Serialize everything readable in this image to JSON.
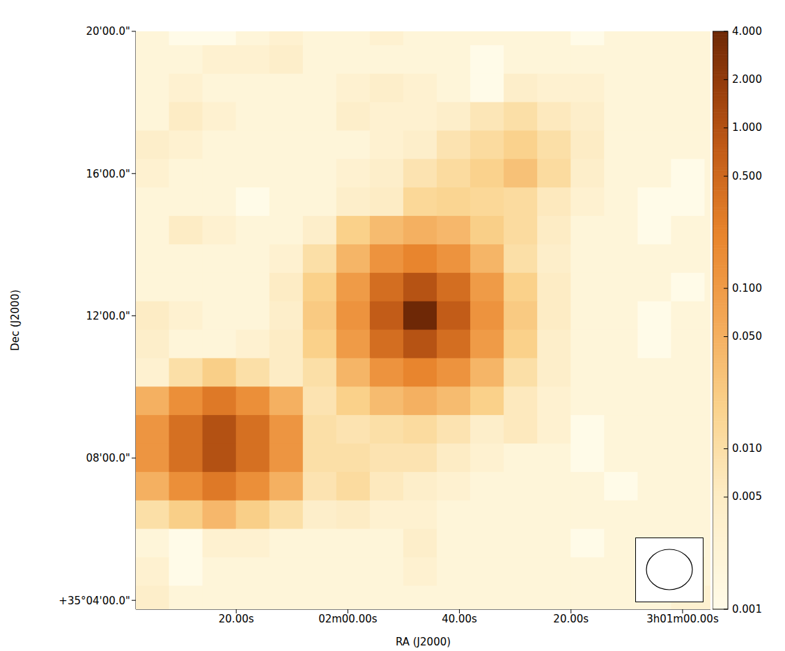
{
  "chart_data": {
    "type": "heatmap",
    "xlabel": "RA (J2000)",
    "ylabel": "Dec (J2000)",
    "xlim": [
      158,
      55
    ],
    "ylim": [
      3.75,
      20.0
    ],
    "xticks": [
      {
        "value": 140,
        "label": "20.00s"
      },
      {
        "value": 120,
        "label": "02m00.00s"
      },
      {
        "value": 100,
        "label": "40.00s"
      },
      {
        "value": 80,
        "label": "20.00s"
      },
      {
        "value": 60,
        "label": "3h01m00.00s"
      }
    ],
    "yticks": [
      {
        "value": 4,
        "label": "+35°04'00.0\""
      },
      {
        "value": 8,
        "label": "08'00.0\""
      },
      {
        "value": 12,
        "label": "12'00.0\""
      },
      {
        "value": 16,
        "label": "16'00.0\""
      },
      {
        "value": 20,
        "label": "20'00.0\""
      }
    ],
    "grid": false,
    "x": [
      155,
      149,
      143,
      137,
      131,
      125,
      119,
      113,
      107,
      101,
      95,
      89,
      83,
      77,
      71,
      65,
      59,
      53
    ],
    "y": [
      20.0,
      19.2,
      18.4,
      17.6,
      16.8,
      16.0,
      15.2,
      14.4,
      13.6,
      12.8,
      12.0,
      11.2,
      10.4,
      9.6,
      8.8,
      8.0,
      7.2,
      6.4,
      5.6,
      4.8,
      4.0
    ],
    "values": [
      [
        0.002,
        0.001,
        0.001,
        0.002,
        0.003,
        0.002,
        0.002,
        0.003,
        0.002,
        0.002,
        0.002,
        0.002,
        0.002,
        0.001,
        0.002,
        0.002,
        0.002,
        0.002
      ],
      [
        0.002,
        0.002,
        0.003,
        0.003,
        0.004,
        0.002,
        0.002,
        0.002,
        0.002,
        0.002,
        0.001,
        0.002,
        0.002,
        0.002,
        0.002,
        0.002,
        0.002,
        0.002
      ],
      [
        0.002,
        0.003,
        0.002,
        0.002,
        0.002,
        0.002,
        0.003,
        0.004,
        0.003,
        0.002,
        0.001,
        0.004,
        0.003,
        0.003,
        0.002,
        0.002,
        0.002,
        0.002
      ],
      [
        0.002,
        0.005,
        0.003,
        0.002,
        0.002,
        0.002,
        0.004,
        0.003,
        0.003,
        0.004,
        0.007,
        0.01,
        0.006,
        0.004,
        0.002,
        0.002,
        0.002,
        0.002
      ],
      [
        0.004,
        0.003,
        0.002,
        0.002,
        0.002,
        0.002,
        0.002,
        0.003,
        0.004,
        0.008,
        0.012,
        0.018,
        0.01,
        0.005,
        0.002,
        0.002,
        0.002,
        0.002
      ],
      [
        0.003,
        0.002,
        0.002,
        0.002,
        0.002,
        0.002,
        0.003,
        0.004,
        0.008,
        0.012,
        0.018,
        0.03,
        0.012,
        0.004,
        0.002,
        0.002,
        0.001,
        0.002
      ],
      [
        0.002,
        0.002,
        0.002,
        0.001,
        0.002,
        0.002,
        0.004,
        0.005,
        0.014,
        0.016,
        0.014,
        0.012,
        0.006,
        0.003,
        0.002,
        0.001,
        0.001,
        0.002
      ],
      [
        0.002,
        0.005,
        0.003,
        0.002,
        0.002,
        0.004,
        0.019,
        0.036,
        0.05,
        0.04,
        0.02,
        0.012,
        0.005,
        0.002,
        0.002,
        0.001,
        0.002,
        0.002
      ],
      [
        0.002,
        0.002,
        0.002,
        0.002,
        0.003,
        0.01,
        0.043,
        0.13,
        0.21,
        0.13,
        0.043,
        0.01,
        0.004,
        0.002,
        0.002,
        0.002,
        0.002,
        0.002
      ],
      [
        0.002,
        0.002,
        0.002,
        0.002,
        0.005,
        0.019,
        0.1,
        0.42,
        0.93,
        0.42,
        0.1,
        0.019,
        0.005,
        0.002,
        0.002,
        0.002,
        0.001,
        0.002
      ],
      [
        0.005,
        0.003,
        0.002,
        0.002,
        0.004,
        0.023,
        0.13,
        0.72,
        4,
        0.72,
        0.13,
        0.023,
        0.005,
        0.002,
        0.002,
        0.001,
        0.002,
        0.002
      ],
      [
        0.004,
        0.002,
        0.002,
        0.003,
        0.005,
        0.019,
        0.1,
        0.42,
        0.93,
        0.42,
        0.1,
        0.019,
        0.004,
        0.002,
        0.002,
        0.001,
        0.002,
        0.002
      ],
      [
        0.003,
        0.01,
        0.02,
        0.01,
        0.005,
        0.01,
        0.043,
        0.13,
        0.21,
        0.13,
        0.043,
        0.01,
        0.004,
        0.002,
        0.002,
        0.002,
        0.002,
        0.002
      ],
      [
        0.05,
        0.15,
        0.3,
        0.15,
        0.05,
        0.008,
        0.019,
        0.036,
        0.05,
        0.036,
        0.019,
        0.006,
        0.003,
        0.002,
        0.002,
        0.002,
        0.002,
        0.002
      ],
      [
        0.12,
        0.4,
        1.0,
        0.4,
        0.12,
        0.01,
        0.008,
        0.01,
        0.012,
        0.008,
        0.004,
        0.006,
        0.003,
        0.001,
        0.002,
        0.002,
        0.002,
        0.002
      ],
      [
        0.12,
        0.4,
        1.0,
        0.4,
        0.12,
        0.01,
        0.01,
        0.008,
        0.008,
        0.005,
        0.003,
        0.002,
        0.002,
        0.001,
        0.002,
        0.002,
        0.002,
        0.002
      ],
      [
        0.05,
        0.15,
        0.3,
        0.15,
        0.05,
        0.008,
        0.012,
        0.006,
        0.004,
        0.003,
        0.002,
        0.002,
        0.002,
        0.002,
        0.001,
        0.002,
        0.002,
        0.002
      ],
      [
        0.01,
        0.02,
        0.04,
        0.02,
        0.01,
        0.004,
        0.005,
        0.003,
        0.003,
        0.002,
        0.002,
        0.002,
        0.002,
        0.002,
        0.002,
        0.002,
        0.002,
        0.002
      ],
      [
        0.002,
        0.001,
        0.003,
        0.003,
        0.002,
        0.002,
        0.002,
        0.002,
        0.004,
        0.002,
        0.002,
        0.002,
        0.002,
        0.001,
        0.002,
        0.002,
        0.002,
        0.002
      ],
      [
        0.003,
        0.001,
        0.002,
        0.002,
        0.002,
        0.002,
        0.002,
        0.002,
        0.003,
        0.002,
        0.002,
        0.002,
        0.002,
        0.002,
        0.002,
        0.002,
        0.004,
        0.002
      ],
      [
        0.004,
        0.002,
        0.002,
        0.002,
        0.002,
        0.002,
        0.002,
        0.002,
        0.002,
        0.002,
        0.002,
        0.002,
        0.002,
        0.002,
        0.002,
        0.002,
        0.003,
        0.003
      ]
    ],
    "colorbar": {
      "range": [
        0.001,
        4
      ],
      "ticks": [
        {
          "value": 0.001,
          "label": "0.001"
        },
        {
          "value": 0.005,
          "label": "0.005"
        },
        {
          "value": 0.01,
          "label": "0.010"
        },
        {
          "value": 0.05,
          "label": "0.050"
        },
        {
          "value": 0.1,
          "label": "0.100"
        },
        {
          "value": 0.5,
          "label": "0.500"
        },
        {
          "value": 1,
          "label": "1.000"
        },
        {
          "value": 2,
          "label": "2.000"
        },
        {
          "value": 4,
          "label": "4.000"
        }
      ]
    }
  }
}
